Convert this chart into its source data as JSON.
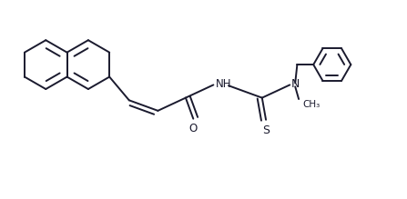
{
  "bg_color": "#ffffff",
  "line_color": "#1a1a2e",
  "lw": 1.4,
  "lw_heavy": 2.2,
  "fs": 8.5,
  "figsize": [
    4.47,
    2.19
  ],
  "dpi": 100,
  "xlim": [
    0,
    11
  ],
  "ylim": [
    0,
    5.5
  ]
}
